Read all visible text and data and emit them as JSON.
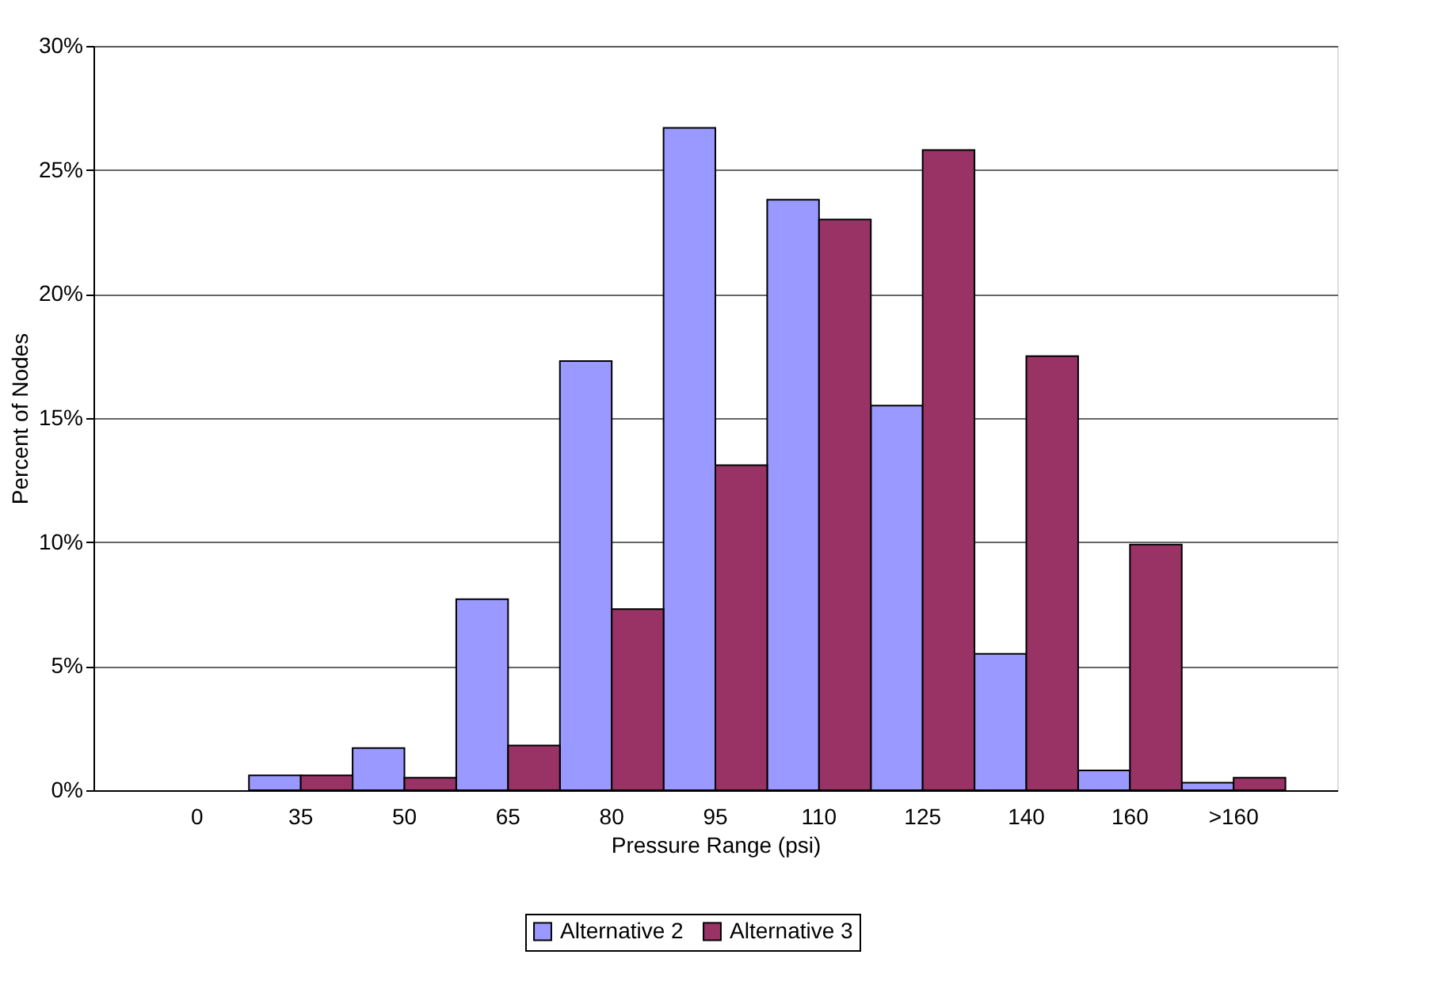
{
  "chart_data": {
    "type": "bar",
    "xlabel": "Pressure Range (psi)",
    "ylabel": "Percent of Nodes",
    "categories": [
      "0",
      "35",
      "50",
      "65",
      "80",
      "95",
      "110",
      "125",
      "140",
      "160",
      ">160"
    ],
    "series": [
      {
        "name": "Alternative 2",
        "color": "#9999ff",
        "values": [
          0,
          0.6,
          1.7,
          7.7,
          17.3,
          26.7,
          23.8,
          15.5,
          5.5,
          0.8,
          0.3
        ]
      },
      {
        "name": "Alternative 3",
        "color": "#993366",
        "values": [
          0,
          0.6,
          0.5,
          1.8,
          7.3,
          13.1,
          23.0,
          25.8,
          17.5,
          9.9,
          0.5
        ]
      }
    ],
    "ylim": [
      0,
      30
    ],
    "yticks": [
      {
        "value": 0,
        "label": "0%"
      },
      {
        "value": 5,
        "label": "5%"
      },
      {
        "value": 10,
        "label": "10%"
      },
      {
        "value": 15,
        "label": "15%"
      },
      {
        "value": 20,
        "label": "20%"
      },
      {
        "value": 25,
        "label": "25%"
      },
      {
        "value": 30,
        "label": "30%"
      }
    ],
    "grid": "y",
    "legend": "bottom"
  }
}
